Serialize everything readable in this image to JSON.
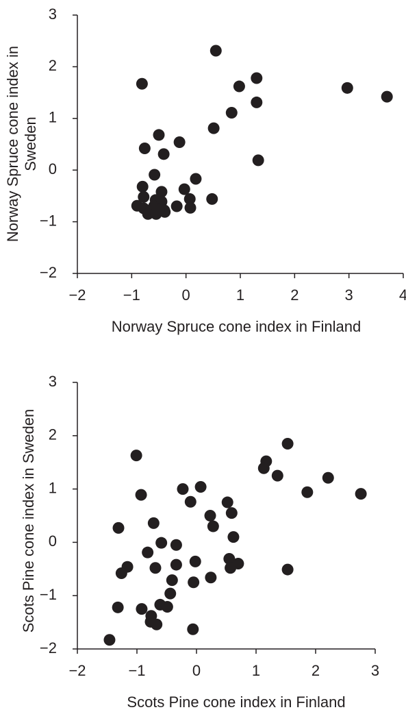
{
  "chart_data": [
    {
      "type": "scatter",
      "xlabel": "Norway Spruce cone index in Finland",
      "ylabel": "Norway Spruce cone index in Sweden",
      "color": "#231f20",
      "xlim": [
        -2,
        4
      ],
      "ylim": [
        -2,
        3
      ],
      "xticks": [
        {
          "value": -2,
          "label": "−2"
        },
        {
          "value": -1,
          "label": "−1"
        },
        0,
        1,
        2,
        3,
        4
      ],
      "yticks": [
        {
          "value": -2,
          "label": "−2"
        },
        {
          "value": -1,
          "label": "−1"
        },
        0,
        1,
        2,
        3
      ],
      "x": [
        0.55,
        -0.81,
        1.3,
        0.98,
        2.97,
        3.7,
        1.3,
        0.84,
        0.51,
        -0.5,
        -0.76,
        -0.41,
        -0.12,
        1.33,
        -0.58,
        -0.8,
        0.18,
        -0.03,
        -0.45,
        -0.78,
        0.48,
        0.07,
        -0.56,
        -0.45,
        -0.9,
        -0.17,
        0.08,
        -0.78,
        -0.59,
        -0.4,
        -0.7,
        -0.55,
        -0.39,
        -0.5
      ],
      "y": [
        2.31,
        1.67,
        1.78,
        1.62,
        1.59,
        1.42,
        1.31,
        1.11,
        0.81,
        0.68,
        0.42,
        0.31,
        0.54,
        0.19,
        -0.09,
        -0.32,
        -0.17,
        -0.37,
        -0.42,
        -0.52,
        -0.56,
        -0.56,
        -0.58,
        -0.61,
        -0.69,
        -0.7,
        -0.73,
        -0.74,
        -0.7,
        -0.78,
        -0.85,
        -0.85,
        -0.81,
        -0.77
      ]
    },
    {
      "type": "scatter",
      "xlabel": "Scots Pine cone index in Finland",
      "ylabel": "Scots Pine cone index in Sweden",
      "color": "#231f20",
      "xlim": [
        -2,
        3
      ],
      "ylim": [
        -2,
        3
      ],
      "xticks": [
        {
          "value": -2,
          "label": "−2"
        },
        {
          "value": -1,
          "label": "−1"
        },
        0,
        1,
        2,
        3
      ],
      "yticks": [
        {
          "value": -2,
          "label": "−2"
        },
        {
          "value": -1,
          "label": "−1"
        },
        0,
        1,
        2,
        3
      ],
      "x": [
        1.53,
        -1.01,
        1.17,
        1.13,
        1.36,
        2.21,
        -0.23,
        0.07,
        -0.93,
        1.86,
        2.76,
        -0.1,
        0.52,
        0.23,
        0.59,
        -0.72,
        0.28,
        -1.31,
        0.62,
        -0.59,
        -0.34,
        -0.82,
        0.55,
        -0.02,
        0.7,
        -0.34,
        -1.16,
        0.57,
        -0.69,
        1.53,
        -1.26,
        -0.41,
        -0.05,
        0.24,
        -0.44,
        -1.32,
        -0.92,
        -0.61,
        -0.49,
        -0.76,
        -0.77,
        -0.67,
        -0.06,
        -1.46
      ],
      "y": [
        1.85,
        1.63,
        1.52,
        1.39,
        1.25,
        1.21,
        1.0,
        1.04,
        0.89,
        0.94,
        0.91,
        0.76,
        0.75,
        0.5,
        0.55,
        0.36,
        0.3,
        0.27,
        0.1,
        -0.01,
        -0.05,
        -0.19,
        -0.31,
        -0.36,
        -0.4,
        -0.42,
        -0.46,
        -0.48,
        -0.48,
        -0.51,
        -0.58,
        -0.71,
        -0.75,
        -0.66,
        -0.96,
        -1.22,
        -1.25,
        -1.17,
        -1.21,
        -1.38,
        -1.49,
        -1.54,
        -1.63,
        -1.83
      ]
    }
  ]
}
